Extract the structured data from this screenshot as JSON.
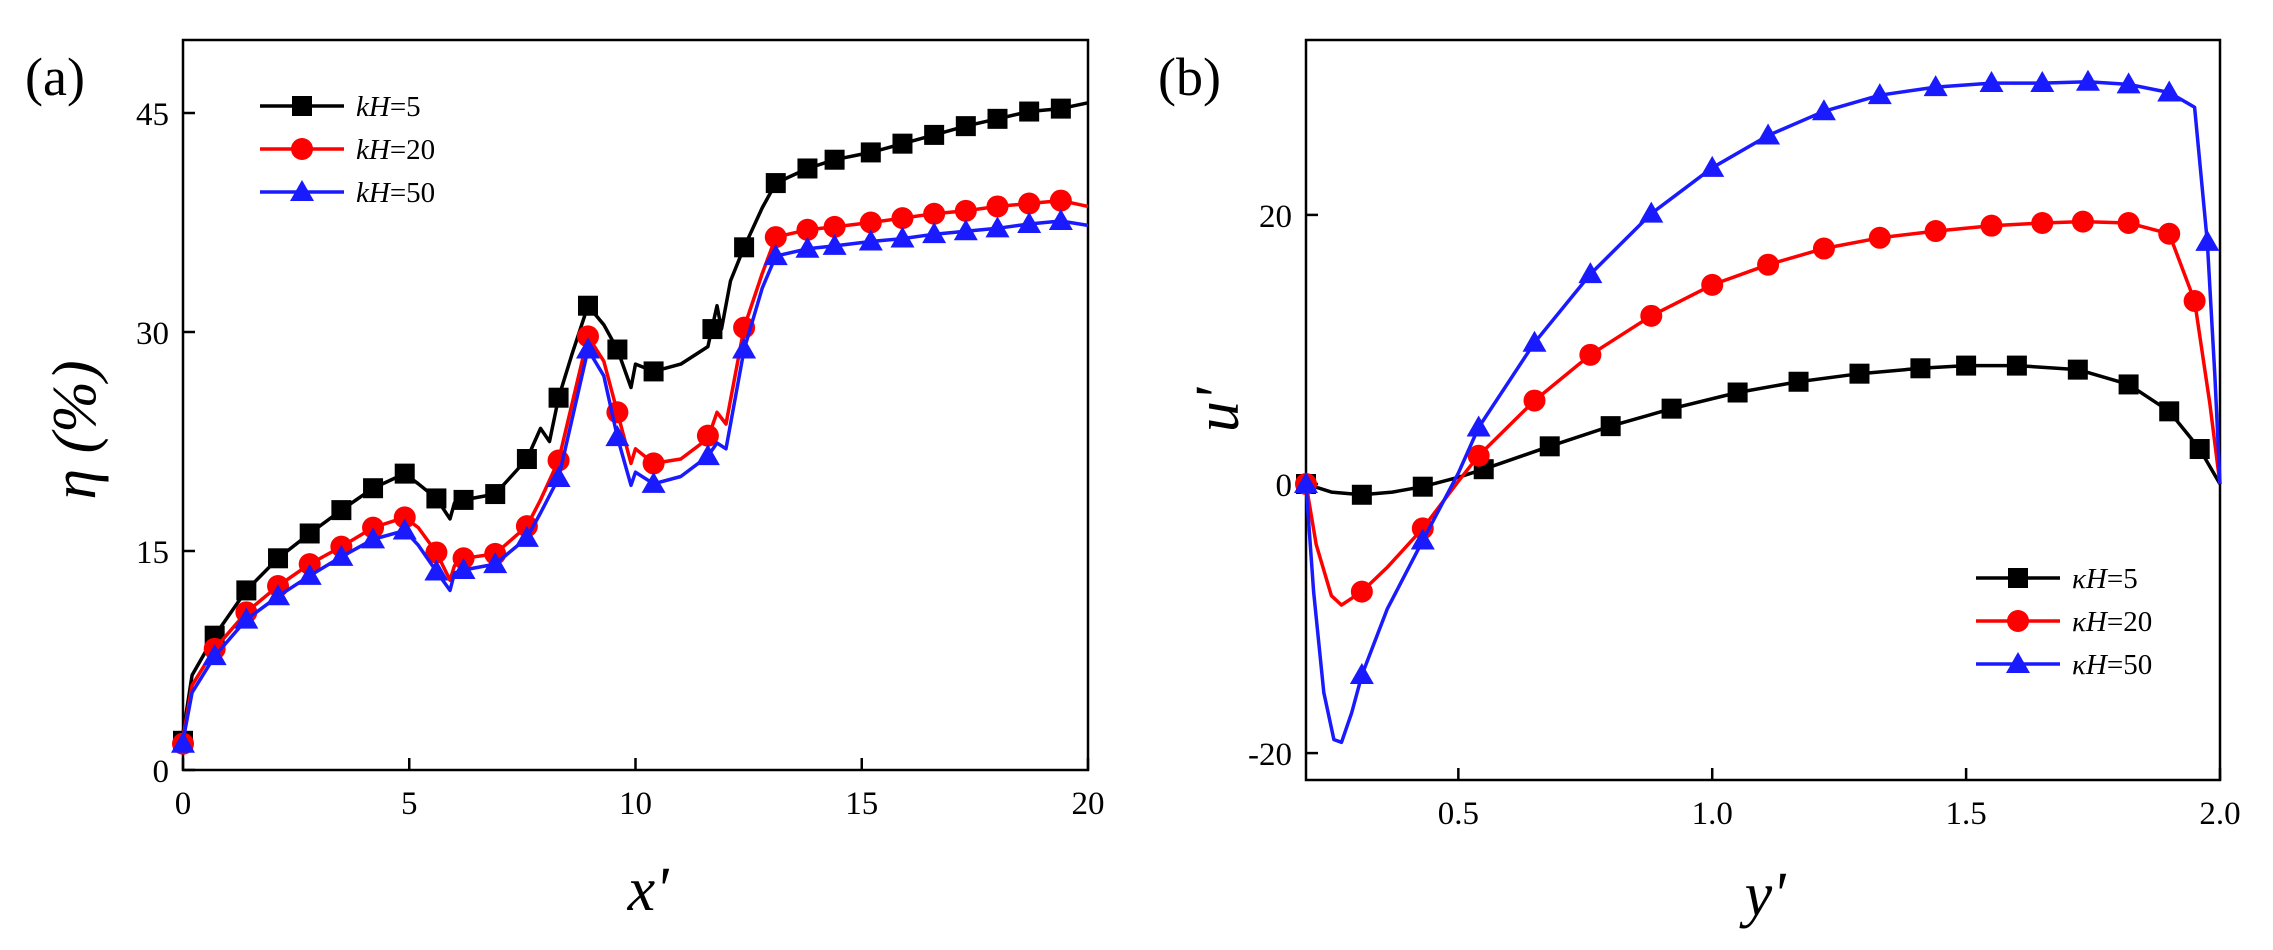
{
  "colors": {
    "black": "#000000",
    "red": "#ff0000",
    "blue": "#1a1aff"
  },
  "chart_data": [
    {
      "type": "line",
      "panel_label": "(a)",
      "xlabel": "x'",
      "ylabel": "η (%)",
      "xlim": [
        0,
        20
      ],
      "ylim": [
        0,
        50
      ],
      "xticks": [
        0,
        5,
        10,
        15,
        20
      ],
      "yticks": [
        0,
        15,
        30,
        45
      ],
      "x_tick_labels": [
        "0",
        "5",
        "10",
        "15",
        "20"
      ],
      "y_tick_labels": [
        "0",
        "15",
        "30",
        "45"
      ],
      "legend_position": "top-left",
      "series": [
        {
          "name": "kH=5",
          "legend_prefix": "kH",
          "legend_suffix": "=5",
          "color": "#000000",
          "marker": "square",
          "x": [
            0,
            0.2,
            0.7,
            1.4,
            2.1,
            2.8,
            3.5,
            4.2,
            4.9,
            5.2,
            5.6,
            5.9,
            6.0,
            6.2,
            6.9,
            7.6,
            7.9,
            8.1,
            8.3,
            8.6,
            8.95,
            9.3,
            9.6,
            9.9,
            10.0,
            10.4,
            11.0,
            11.6,
            11.8,
            11.9,
            12.1,
            12.4,
            12.8,
            13.1,
            13.8,
            14.4,
            15.2,
            15.9,
            16.6,
            17.3,
            18.0,
            18.7,
            19.4,
            20.0
          ],
          "y": [
            2.5,
            6.5,
            9.2,
            12.3,
            14.5,
            16.2,
            17.8,
            19.3,
            20.3,
            19.6,
            18.6,
            17.2,
            18.3,
            18.5,
            18.9,
            21.3,
            23.4,
            22.5,
            25.5,
            28.5,
            31.8,
            30.5,
            28.8,
            26.2,
            27.8,
            27.3,
            27.8,
            29.0,
            31.8,
            30.2,
            33.5,
            35.8,
            38.5,
            40.2,
            41.2,
            41.8,
            42.3,
            42.9,
            43.5,
            44.1,
            44.6,
            45.1,
            45.3,
            45.7
          ],
          "markers_x": [
            0,
            0.7,
            1.4,
            2.1,
            2.8,
            3.5,
            4.2,
            4.9,
            5.6,
            6.2,
            6.9,
            7.6,
            8.3,
            8.95,
            9.6,
            10.4,
            11.7,
            12.4,
            13.1,
            13.8,
            14.4,
            15.2,
            15.9,
            16.6,
            17.3,
            18.0,
            18.7,
            19.4
          ],
          "markers_y": [
            2.0,
            9.2,
            12.3,
            14.5,
            16.2,
            17.8,
            19.3,
            20.3,
            18.6,
            18.5,
            18.9,
            21.3,
            25.5,
            31.8,
            28.8,
            27.3,
            30.2,
            35.8,
            40.2,
            41.2,
            41.8,
            42.3,
            42.9,
            43.5,
            44.1,
            44.6,
            45.1,
            45.3
          ]
        },
        {
          "name": "kH=20",
          "legend_prefix": "kH",
          "legend_suffix": "=20",
          "color": "#ff0000",
          "marker": "circle",
          "x": [
            0,
            0.2,
            0.7,
            1.4,
            2.1,
            2.8,
            3.5,
            4.2,
            4.9,
            5.2,
            5.6,
            5.9,
            6.0,
            6.2,
            6.9,
            7.6,
            7.9,
            8.3,
            8.95,
            9.3,
            9.6,
            9.9,
            10.0,
            10.4,
            11.0,
            11.6,
            11.8,
            12.0,
            12.4,
            12.8,
            13.1,
            13.8,
            14.4,
            15.2,
            15.9,
            16.6,
            17.3,
            18.0,
            18.7,
            19.4,
            20.0
          ],
          "y": [
            2.2,
            5.8,
            8.3,
            10.8,
            12.6,
            14.1,
            15.3,
            16.6,
            17.3,
            16.6,
            14.9,
            13.0,
            14.0,
            14.5,
            14.8,
            16.7,
            18.5,
            21.2,
            29.7,
            28.0,
            24.5,
            21.0,
            22.0,
            21.0,
            21.3,
            22.7,
            24.5,
            23.7,
            30.3,
            34.0,
            36.5,
            37.0,
            37.2,
            37.5,
            37.8,
            38.1,
            38.3,
            38.6,
            38.8,
            39.0,
            38.6
          ],
          "markers_x": [
            0,
            0.7,
            1.4,
            2.1,
            2.8,
            3.5,
            4.2,
            4.9,
            5.6,
            6.2,
            6.9,
            7.6,
            8.3,
            8.95,
            9.6,
            10.4,
            11.6,
            12.4,
            13.1,
            13.8,
            14.4,
            15.2,
            15.9,
            16.6,
            17.3,
            18.0,
            18.7,
            19.4
          ],
          "markers_y": [
            1.8,
            8.3,
            10.8,
            12.6,
            14.1,
            15.3,
            16.6,
            17.3,
            14.9,
            14.5,
            14.8,
            16.7,
            21.2,
            29.7,
            24.5,
            21.0,
            22.9,
            30.3,
            36.5,
            37.0,
            37.2,
            37.5,
            37.8,
            38.1,
            38.3,
            38.6,
            38.8,
            39.0
          ]
        },
        {
          "name": "kH=50",
          "legend_prefix": "kH",
          "legend_suffix": "=50",
          "color": "#1a1aff",
          "marker": "triangle",
          "x": [
            0,
            0.2,
            0.7,
            1.4,
            2.1,
            2.8,
            3.5,
            4.2,
            4.9,
            5.2,
            5.6,
            5.9,
            6.0,
            6.2,
            6.9,
            7.6,
            7.9,
            8.3,
            8.95,
            9.3,
            9.6,
            9.9,
            10.0,
            10.4,
            11.0,
            11.6,
            11.8,
            12.0,
            12.4,
            12.8,
            13.1,
            13.8,
            14.4,
            15.2,
            15.9,
            16.6,
            17.3,
            18.0,
            18.7,
            19.4,
            20.0
          ],
          "y": [
            2.0,
            5.3,
            7.8,
            10.3,
            11.9,
            13.3,
            14.6,
            15.8,
            16.4,
            15.4,
            13.6,
            12.3,
            13.5,
            13.7,
            14.1,
            15.9,
            17.6,
            20.0,
            28.8,
            27.0,
            22.8,
            19.5,
            20.4,
            19.6,
            20.1,
            21.5,
            22.4,
            22.0,
            28.8,
            33.0,
            35.2,
            35.7,
            35.9,
            36.2,
            36.4,
            36.7,
            36.9,
            37.1,
            37.4,
            37.6,
            37.3
          ],
          "markers_x": [
            0,
            0.7,
            1.4,
            2.1,
            2.8,
            3.5,
            4.2,
            4.9,
            5.6,
            6.2,
            6.9,
            7.6,
            8.3,
            8.95,
            9.6,
            10.4,
            11.6,
            12.4,
            13.1,
            13.8,
            14.4,
            15.2,
            15.9,
            16.6,
            17.3,
            18.0,
            18.7,
            19.4
          ],
          "markers_y": [
            1.8,
            7.8,
            10.3,
            11.9,
            13.3,
            14.6,
            15.8,
            16.4,
            13.6,
            13.7,
            14.1,
            15.9,
            20.0,
            28.8,
            22.8,
            19.6,
            21.5,
            28.8,
            35.2,
            35.7,
            35.9,
            36.2,
            36.4,
            36.7,
            36.9,
            37.1,
            37.4,
            37.6
          ]
        }
      ]
    },
    {
      "type": "line",
      "panel_label": "(b)",
      "xlabel": "y'",
      "ylabel": "u'",
      "xlim": [
        0.2,
        2.0
      ],
      "ylim": [
        -22,
        33
      ],
      "xticks": [
        0.5,
        1.0,
        1.5,
        2.0
      ],
      "yticks": [
        -20,
        0,
        20
      ],
      "x_tick_labels": [
        "0.5",
        "1.0",
        "1.5",
        "2.0"
      ],
      "y_tick_labels": [
        "-20",
        "0",
        "20"
      ],
      "legend_position": "bottom-right",
      "series": [
        {
          "name": "κH=5",
          "legend_prefix": "κH",
          "legend_suffix": "=5",
          "color": "#000000",
          "marker": "square",
          "x": [
            0.2,
            0.25,
            0.31,
            0.37,
            0.43,
            0.5,
            0.55,
            0.68,
            0.8,
            0.92,
            1.05,
            1.17,
            1.29,
            1.41,
            1.5,
            1.6,
            1.72,
            1.82,
            1.9,
            1.96,
            2.0
          ],
          "y": [
            0,
            -0.6,
            -0.8,
            -0.6,
            -0.2,
            0.5,
            1.1,
            2.8,
            4.3,
            5.6,
            6.8,
            7.6,
            8.2,
            8.6,
            8.8,
            8.8,
            8.5,
            7.4,
            5.4,
            2.6,
            0
          ],
          "markers_x": [
            0.2,
            0.31,
            0.43,
            0.55,
            0.68,
            0.8,
            0.92,
            1.05,
            1.17,
            1.29,
            1.41,
            1.5,
            1.6,
            1.72,
            1.82,
            1.9,
            1.96
          ],
          "markers_y": [
            0,
            -0.8,
            -0.2,
            1.1,
            2.8,
            4.3,
            5.6,
            6.8,
            7.6,
            8.2,
            8.6,
            8.8,
            8.8,
            8.5,
            7.4,
            5.4,
            2.6
          ]
        },
        {
          "name": "κH=20",
          "legend_prefix": "κH",
          "legend_suffix": "=20",
          "color": "#ff0000",
          "marker": "circle",
          "x": [
            0.2,
            0.22,
            0.25,
            0.27,
            0.31,
            0.36,
            0.43,
            0.5,
            0.54,
            0.65,
            0.76,
            0.88,
            1.0,
            1.11,
            1.22,
            1.33,
            1.44,
            1.55,
            1.65,
            1.73,
            1.82,
            1.9,
            1.95,
            1.98,
            2.0
          ],
          "y": [
            0,
            -4.5,
            -8.3,
            -9.0,
            -8.0,
            -6.2,
            -3.3,
            0.2,
            2.1,
            6.2,
            9.6,
            12.5,
            14.8,
            16.3,
            17.5,
            18.3,
            18.8,
            19.2,
            19.4,
            19.5,
            19.4,
            18.6,
            13.6,
            6.0,
            0
          ],
          "markers_x": [
            0.2,
            0.31,
            0.43,
            0.54,
            0.65,
            0.76,
            0.88,
            1.0,
            1.11,
            1.22,
            1.33,
            1.44,
            1.55,
            1.65,
            1.73,
            1.82,
            1.9,
            1.95
          ],
          "markers_y": [
            0,
            -8.0,
            -3.3,
            2.1,
            6.2,
            9.6,
            12.5,
            14.8,
            16.3,
            17.5,
            18.3,
            18.8,
            19.2,
            19.4,
            19.5,
            19.4,
            18.6,
            13.6
          ]
        },
        {
          "name": "κH=50",
          "legend_prefix": "κH",
          "legend_suffix": "=50",
          "color": "#1a1aff",
          "marker": "triangle",
          "x": [
            0.2,
            0.215,
            0.235,
            0.255,
            0.27,
            0.29,
            0.31,
            0.36,
            0.43,
            0.5,
            0.54,
            0.65,
            0.76,
            0.88,
            1.0,
            1.11,
            1.22,
            1.33,
            1.44,
            1.55,
            1.65,
            1.74,
            1.82,
            1.9,
            1.95,
            1.975,
            1.99,
            2.0
          ],
          "y": [
            0,
            -8.0,
            -15.5,
            -19.0,
            -19.2,
            -17.0,
            -14.2,
            -9.3,
            -4.2,
            0.8,
            4.2,
            10.5,
            15.6,
            20.1,
            23.5,
            25.9,
            27.7,
            28.9,
            29.5,
            29.8,
            29.8,
            29.9,
            29.7,
            29.1,
            28.0,
            18.0,
            8.0,
            0
          ],
          "markers_x": [
            0.2,
            0.31,
            0.43,
            0.54,
            0.65,
            0.76,
            0.88,
            1.0,
            1.11,
            1.22,
            1.33,
            1.44,
            1.55,
            1.65,
            1.74,
            1.82,
            1.9,
            1.975
          ],
          "markers_y": [
            0,
            -14.2,
            -4.2,
            4.2,
            10.5,
            15.6,
            20.1,
            23.5,
            25.9,
            27.7,
            28.9,
            29.5,
            29.8,
            29.8,
            29.9,
            29.7,
            29.1,
            18.0
          ]
        }
      ]
    }
  ]
}
